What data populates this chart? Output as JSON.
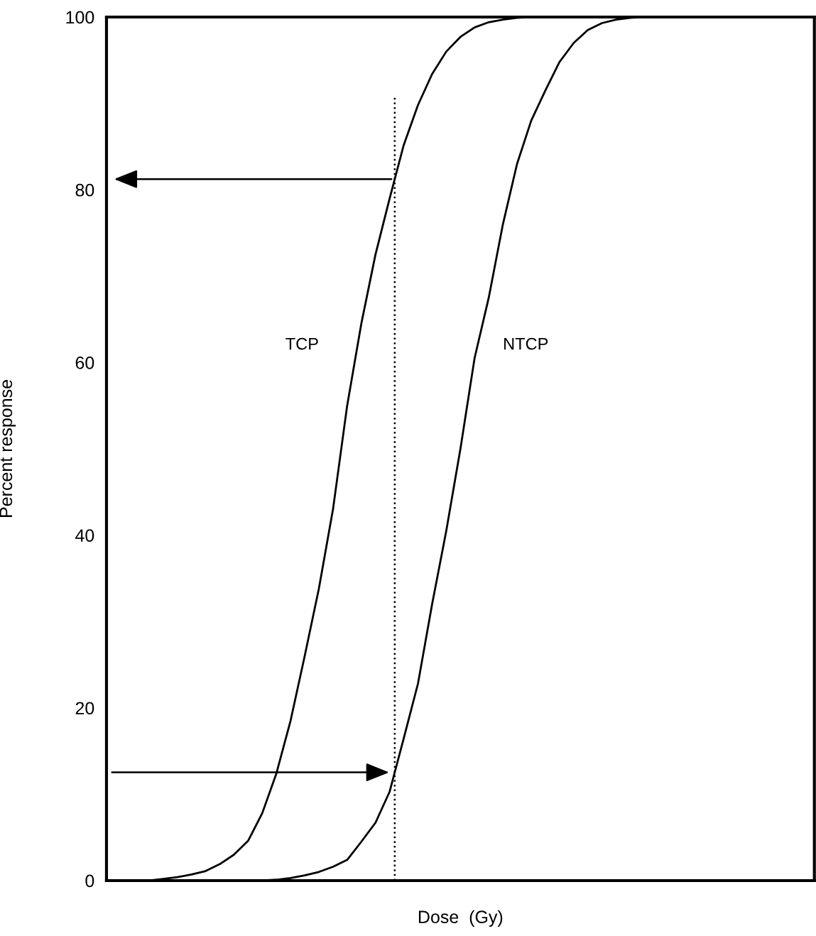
{
  "chart_data": {
    "type": "line",
    "xlabel": "Dose  (Gy)",
    "ylabel": "Percent response",
    "categories": [
      null,
      null,
      null,
      null,
      null,
      null,
      null,
      null,
      null,
      null,
      null,
      null,
      null,
      null,
      null,
      null,
      null,
      null,
      null,
      null,
      null,
      null,
      null,
      null,
      null,
      null,
      null,
      null,
      null,
      null,
      null,
      null,
      null,
      null,
      null,
      null,
      null,
      null,
      null,
      null,
      null,
      null,
      null,
      null,
      null,
      null,
      null,
      null,
      null,
      null,
      null
    ],
    "series": [
      {
        "name": "TCP",
        "color": "#000000",
        "values": [
          null,
          null,
          null,
          0,
          0.2,
          0.4,
          0.7,
          1.1,
          1.9,
          3.0,
          4.6,
          7.8,
          12.4,
          18.5,
          26,
          33.8,
          43,
          55,
          64.5,
          72.5,
          79,
          85.2,
          89.8,
          93.4,
          96,
          97.7,
          98.8,
          99.4,
          99.7,
          99.9,
          100,
          null,
          null,
          null,
          null,
          null,
          null,
          null,
          null,
          null,
          null,
          null,
          null,
          null,
          null,
          null,
          null,
          null,
          null,
          null,
          null
        ]
      },
      {
        "name": "NTCP",
        "color": "#000000",
        "values": [
          null,
          null,
          null,
          null,
          null,
          null,
          null,
          null,
          null,
          null,
          null,
          0,
          0.1,
          0.3,
          0.6,
          1.0,
          1.6,
          2.4,
          4.5,
          6.7,
          10.3,
          16.5,
          22.8,
          32,
          40.5,
          50,
          60.5,
          67.5,
          76,
          83,
          88,
          91.5,
          94.8,
          97,
          98.5,
          99.3,
          99.7,
          99.9,
          100,
          null,
          null,
          null,
          null,
          null,
          null,
          null,
          null,
          null,
          null,
          null,
          null
        ]
      }
    ],
    "ylim": [
      0,
      100
    ],
    "yticks": [
      0,
      20,
      40,
      60,
      80,
      100
    ],
    "tick_labels": "y",
    "grid": false,
    "legend": false,
    "marker": "none",
    "line_style": "solid"
  }
}
